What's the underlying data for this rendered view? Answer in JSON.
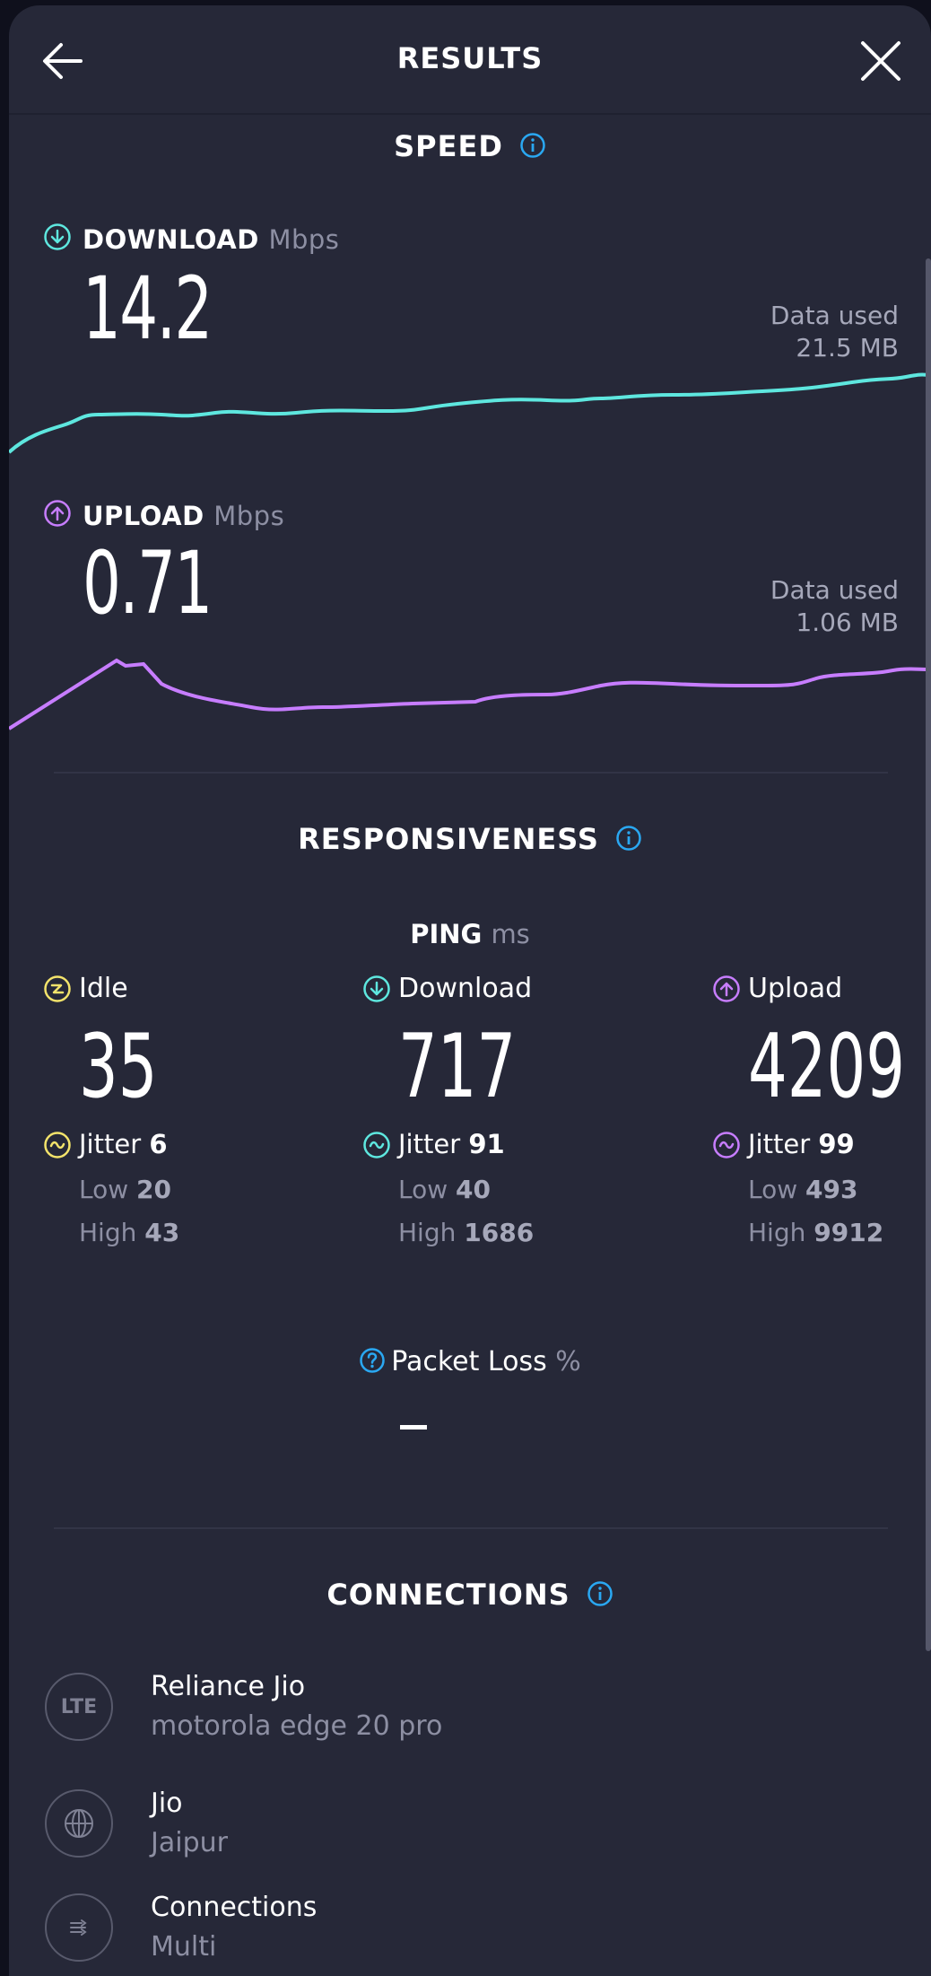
{
  "header": {
    "title": "RESULTS",
    "back_icon": "arrow-left-icon",
    "close_icon": "close-icon"
  },
  "speed": {
    "title": "SPEED",
    "download": {
      "label": "DOWNLOAD",
      "unit": "Mbps",
      "value": "14.2",
      "data_used_label": "Data used",
      "data_used": "21.5 MB",
      "color": "#5ee7df"
    },
    "upload": {
      "label": "UPLOAD",
      "unit": "Mbps",
      "value": "0.71",
      "data_used_label": "Data used",
      "data_used": "1.06 MB",
      "color": "#c77dff"
    }
  },
  "responsiveness": {
    "title": "RESPONSIVENESS",
    "ping_label": "PING",
    "ping_unit": "ms",
    "columns": [
      {
        "label": "Idle",
        "value": "35",
        "jitter_label": "Jitter",
        "jitter": "6",
        "low_label": "Low",
        "low": "20",
        "high_label": "High",
        "high": "43",
        "color": "#f3e36b"
      },
      {
        "label": "Download",
        "value": "717",
        "jitter_label": "Jitter",
        "jitter": "91",
        "low_label": "Low",
        "low": "40",
        "high_label": "High",
        "high": "1686",
        "color": "#5ee7df"
      },
      {
        "label": "Upload",
        "value": "4209",
        "jitter_label": "Jitter",
        "jitter": "99",
        "low_label": "Low",
        "low": "493",
        "high_label": "High",
        "high": "9912",
        "color": "#c77dff"
      }
    ],
    "packet_loss_label": "Packet Loss",
    "packet_loss_unit": "%",
    "packet_loss_value": "–"
  },
  "connections": {
    "title": "CONNECTIONS",
    "items": [
      {
        "icon": "lte-icon",
        "icon_text": "LTE",
        "name": "Reliance Jio",
        "sub": "motorola edge 20 pro"
      },
      {
        "icon": "globe-icon",
        "name": "Jio",
        "sub": "Jaipur"
      },
      {
        "icon": "multi-connection-icon",
        "name": "Connections",
        "sub": "Multi"
      }
    ]
  },
  "colors": {
    "background": "#262838",
    "accent_info": "#2aa8f2"
  }
}
